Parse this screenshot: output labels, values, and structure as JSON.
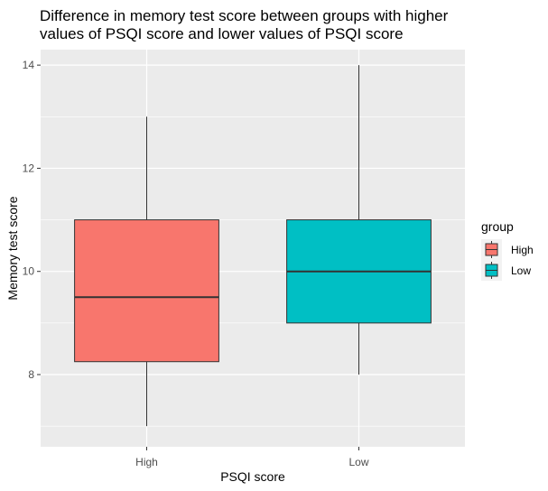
{
  "chart_data": {
    "type": "boxplot",
    "title": "Difference in memory test score between groups with higher values of PSQI score and lower values of PSQI score",
    "title_lines": [
      "Difference in memory test score between groups with higher",
      "values of PSQI score and lower values of PSQI score"
    ],
    "xlabel": "PSQI score",
    "ylabel": "Memory test score",
    "categories": [
      "High",
      "Low"
    ],
    "ylim": [
      6.6,
      14.3
    ],
    "yticks": [
      8,
      10,
      12,
      14
    ],
    "grid": true,
    "legend": {
      "title": "group",
      "position": "right",
      "entries": [
        {
          "label": "High",
          "color": "#F8766D"
        },
        {
          "label": "Low",
          "color": "#00BFC4"
        }
      ]
    },
    "series": [
      {
        "name": "High",
        "color": "#F8766D",
        "min": 7,
        "q1": 8.25,
        "median": 9.5,
        "q3": 11,
        "max": 13
      },
      {
        "name": "Low",
        "color": "#00BFC4",
        "min": 8,
        "q1": 9,
        "median": 10,
        "q3": 11,
        "max": 14
      }
    ]
  }
}
